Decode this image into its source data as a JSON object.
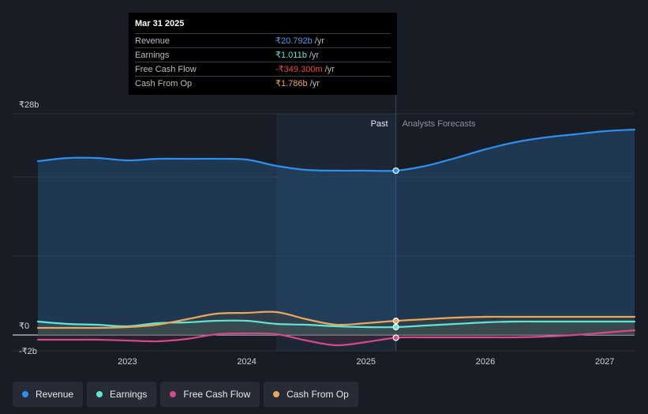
{
  "tooltip": {
    "date": "Mar 31 2025",
    "rows": [
      {
        "label": "Revenue",
        "value": "₹20.792b",
        "unit": "/yr",
        "color": "#3ea0f0"
      },
      {
        "label": "Earnings",
        "value": "₹1.011b",
        "unit": "/yr",
        "color": "#5ee5d6"
      },
      {
        "label": "Free Cash Flow",
        "value": "-₹349.300m",
        "unit": "/yr",
        "color": "#f0454a"
      },
      {
        "label": "Cash From Op",
        "value": "₹1.786b",
        "unit": "/yr",
        "color": "#e8a85c"
      }
    ]
  },
  "legend": [
    {
      "label": "Revenue",
      "color": "#2d8ff0"
    },
    {
      "label": "Earnings",
      "color": "#5ee5d6"
    },
    {
      "label": "Free Cash Flow",
      "color": "#d4488c"
    },
    {
      "label": "Cash From Op",
      "color": "#e8a85c"
    }
  ],
  "chart_data": {
    "type": "area",
    "y_unit": "₹ billions",
    "ylim": [
      -2,
      28
    ],
    "ytick_labels": [
      {
        "value": 28,
        "label": "₹28b"
      },
      {
        "value": 0,
        "label": "₹0"
      },
      {
        "value": -2,
        "label": "-₹2b"
      }
    ],
    "xlim": [
      2022.25,
      2027.25
    ],
    "xtick_labels": [
      {
        "value": 2023,
        "label": "2023"
      },
      {
        "value": 2024,
        "label": "2024"
      },
      {
        "value": 2025,
        "label": "2025"
      },
      {
        "value": 2026,
        "label": "2026"
      },
      {
        "value": 2027,
        "label": "2027"
      }
    ],
    "past_region": [
      2024.25,
      2025.25
    ],
    "past_label": "Past",
    "forecast_label": "Analysts Forecasts",
    "marker_x": 2025.25,
    "series": [
      {
        "name": "Revenue",
        "color": "#2d8ff0",
        "x": [
          2022.25,
          2022.5,
          2022.75,
          2023.0,
          2023.25,
          2023.5,
          2023.75,
          2024.0,
          2024.25,
          2024.5,
          2024.75,
          2025.0,
          2025.25,
          2025.5,
          2025.75,
          2026.0,
          2026.25,
          2026.5,
          2026.75,
          2027.0,
          2027.25
        ],
        "values": [
          22.0,
          22.4,
          22.4,
          22.1,
          22.3,
          22.3,
          22.3,
          22.2,
          21.4,
          20.9,
          20.8,
          20.8,
          20.8,
          21.4,
          22.4,
          23.5,
          24.4,
          25.0,
          25.4,
          25.8,
          26.0
        ]
      },
      {
        "name": "Earnings",
        "color": "#5ee5d6",
        "x": [
          2022.25,
          2022.5,
          2022.75,
          2023.0,
          2023.25,
          2023.5,
          2023.75,
          2024.0,
          2024.25,
          2024.5,
          2024.75,
          2025.0,
          2025.25,
          2025.5,
          2025.75,
          2026.0,
          2026.25,
          2026.5,
          2026.75,
          2027.0,
          2027.25
        ],
        "values": [
          1.7,
          1.4,
          1.3,
          1.1,
          1.5,
          1.6,
          1.8,
          1.8,
          1.4,
          1.3,
          1.1,
          1.0,
          1.0,
          1.2,
          1.4,
          1.6,
          1.7,
          1.7,
          1.7,
          1.7,
          1.7
        ]
      },
      {
        "name": "Free Cash Flow",
        "color": "#d4488c",
        "x": [
          2022.25,
          2022.5,
          2022.75,
          2023.0,
          2023.25,
          2023.5,
          2023.75,
          2024.0,
          2024.25,
          2024.5,
          2024.75,
          2025.0,
          2025.25,
          2025.5,
          2025.75,
          2026.0,
          2026.25,
          2026.5,
          2026.75,
          2027.0,
          2027.25
        ],
        "values": [
          -0.6,
          -0.6,
          -0.6,
          -0.7,
          -0.8,
          -0.5,
          0.1,
          0.2,
          0.1,
          -0.7,
          -1.3,
          -0.9,
          -0.35,
          -0.3,
          -0.3,
          -0.3,
          -0.3,
          -0.2,
          0.0,
          0.3,
          0.6
        ]
      },
      {
        "name": "Cash From Op",
        "color": "#e8a85c",
        "x": [
          2022.25,
          2022.5,
          2022.75,
          2023.0,
          2023.25,
          2023.5,
          2023.75,
          2024.0,
          2024.25,
          2024.5,
          2024.75,
          2025.0,
          2025.25,
          2025.5,
          2025.75,
          2026.0,
          2026.25,
          2026.5,
          2026.75,
          2027.0,
          2027.25
        ],
        "values": [
          0.9,
          0.9,
          0.9,
          1.0,
          1.3,
          2.0,
          2.7,
          2.8,
          2.9,
          2.0,
          1.3,
          1.5,
          1.786,
          2.0,
          2.2,
          2.3,
          2.3,
          2.3,
          2.3,
          2.3,
          2.3
        ]
      }
    ]
  }
}
